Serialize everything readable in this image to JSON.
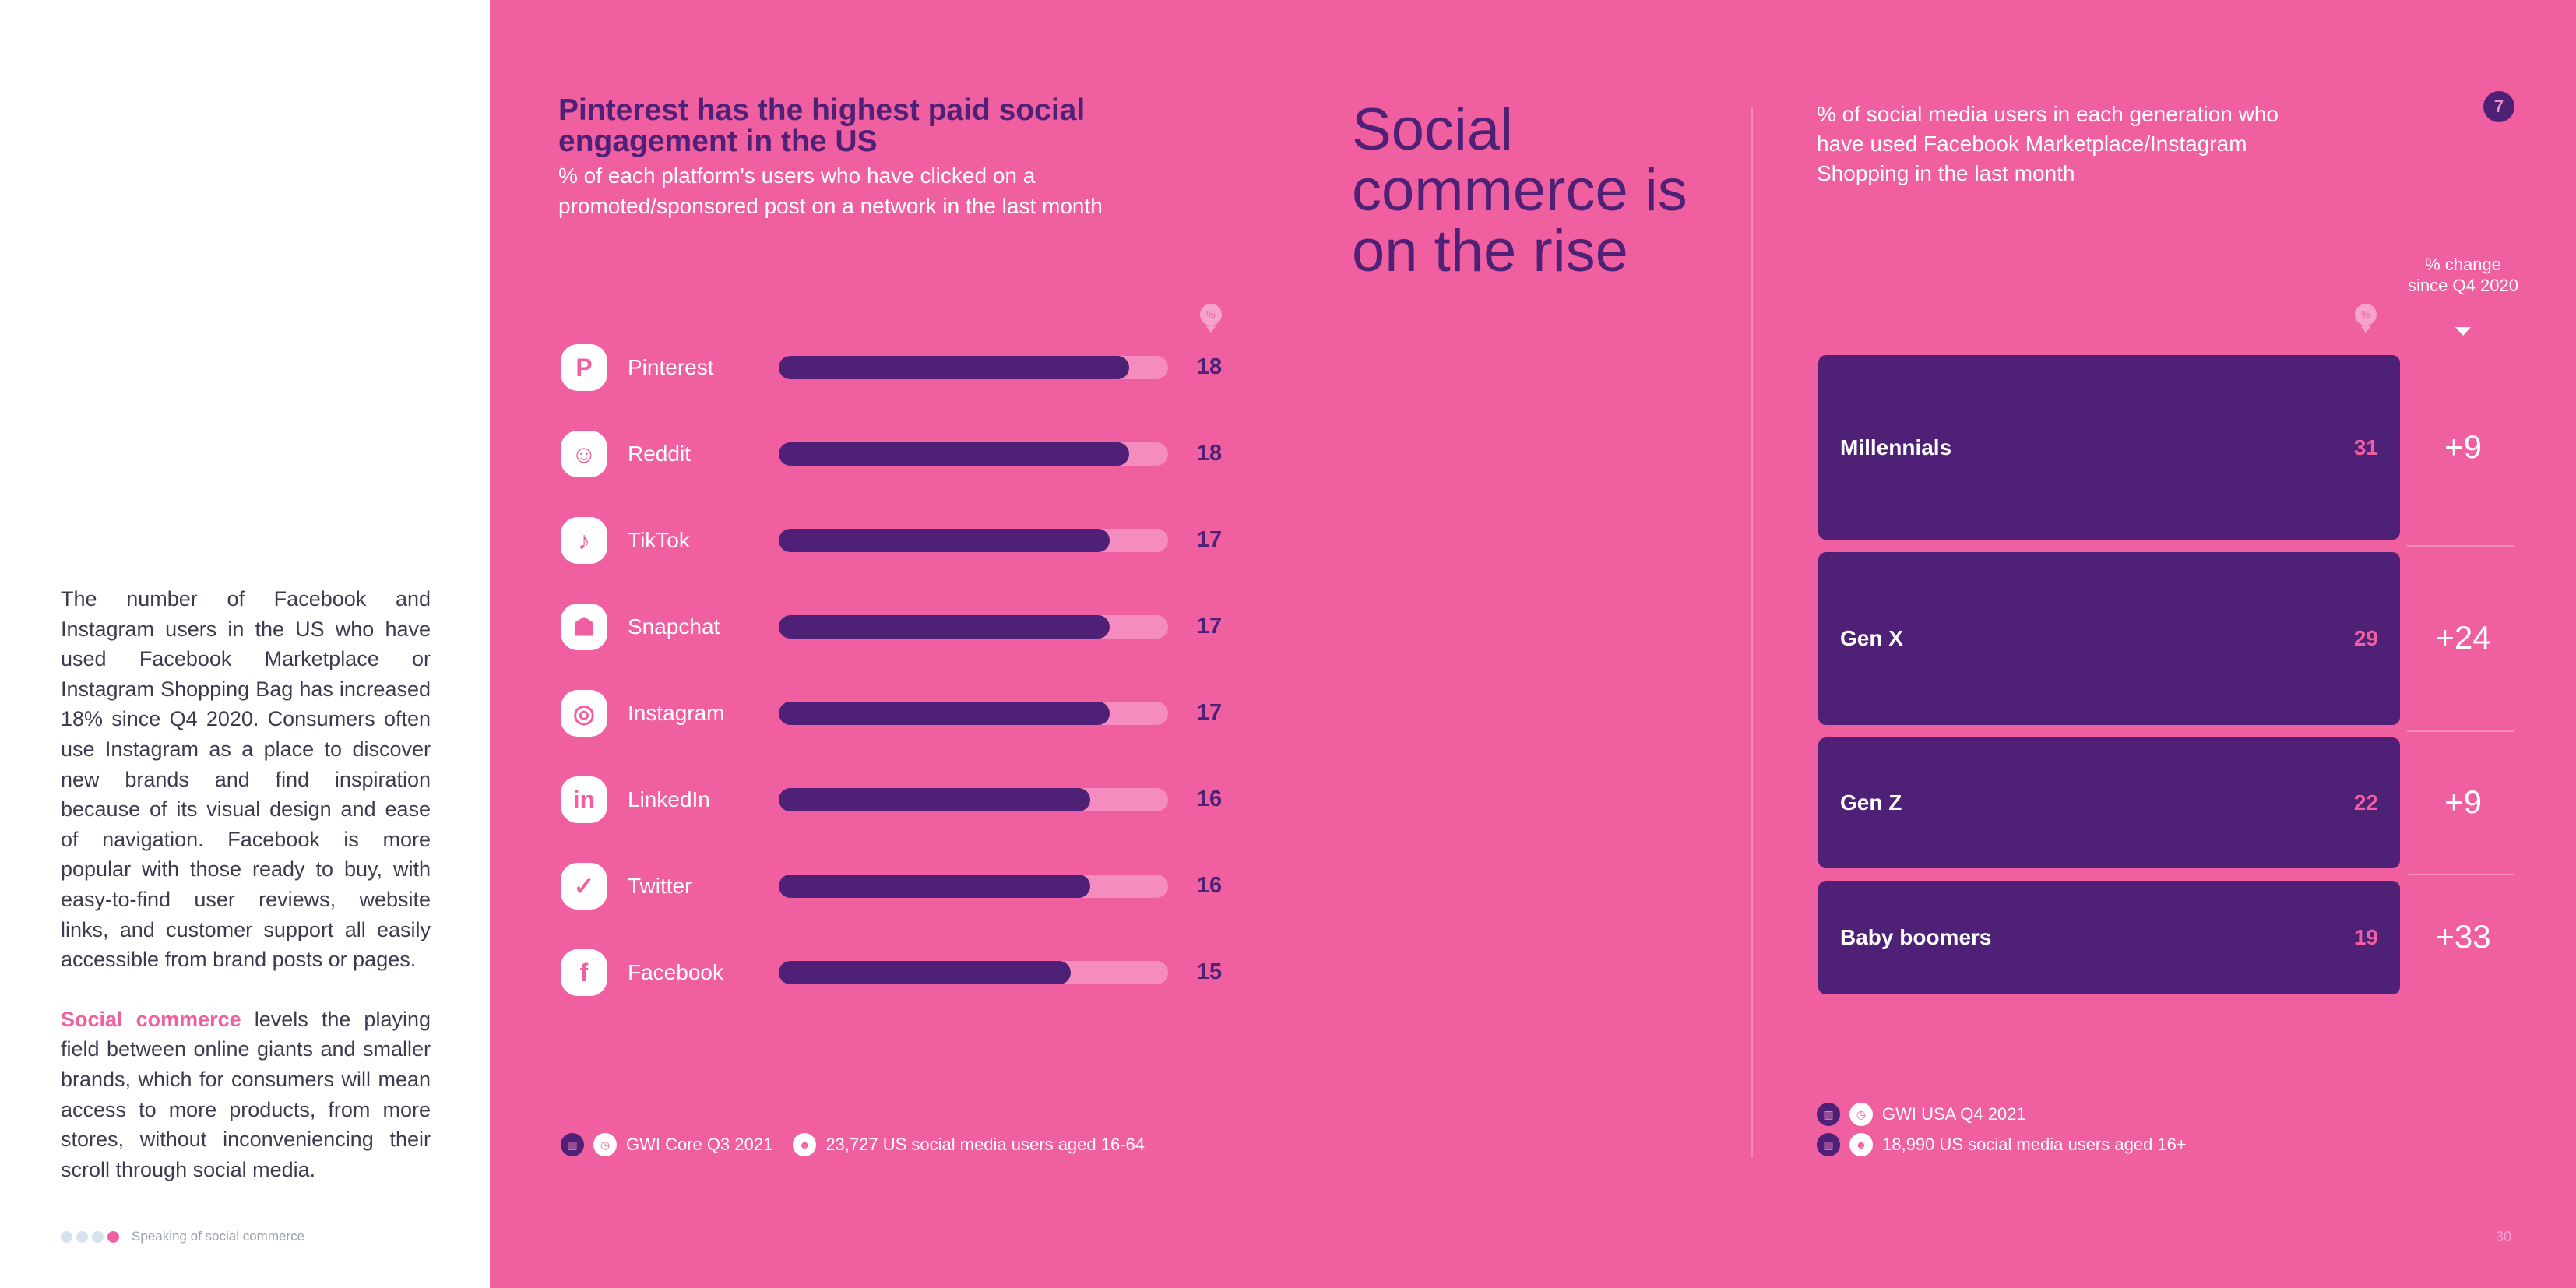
{
  "sidebar": {
    "paragraph1": "The number of Facebook and Instagram users in the US who have used Facebook Marketplace or Instagram Shopping Bag has increased 18% since Q4 2020. Consumers often use Instagram as a place to discover new brands and find inspiration because of its visual design and ease of navigation. Facebook is more popular with those ready to buy, with easy-to-find user reviews, website links, and customer support all easily accessible from brand posts or pages.",
    "highlight": "Social commerce",
    "paragraph2_rest": " levels the playing field between online giants and smaller brands, which for consumers will mean access to more products, from more stores, without inconveniencing their scroll through social media.",
    "footer": "Speaking of social commerce",
    "progress_dots": 4,
    "active_dot": 4
  },
  "colors": {
    "background": "#f05fa0",
    "purple": "#4f2176",
    "track": "#f58cc0"
  },
  "chart_data": [
    {
      "type": "bar",
      "title": "Pinterest has the highest paid social engagement in the US",
      "subtitle": "% of each platform's users who have clicked on a promoted/sponsored post on a network in the last month",
      "unit_icon": "%",
      "categories": [
        "Pinterest",
        "Reddit",
        "TikTok",
        "Snapchat",
        "Instagram",
        "LinkedIn",
        "Twitter",
        "Facebook"
      ],
      "icons": [
        "pinterest-icon",
        "reddit-icon",
        "tiktok-icon",
        "snapchat-icon",
        "instagram-icon",
        "linkedin-icon",
        "twitter-icon",
        "facebook-icon"
      ],
      "glyphs": [
        "P",
        "☺",
        "♪",
        "☗",
        "◎",
        "in",
        "✓",
        "f"
      ],
      "values": [
        18,
        18,
        17,
        17,
        17,
        16,
        16,
        15
      ],
      "xlim": [
        0,
        20
      ],
      "source": "GWI Core Q3 2021",
      "base": "23,727 US social media users aged 16-64"
    },
    {
      "type": "bar",
      "subtitle": "% of social media users in each generation who have used Facebook Marketplace/Instagram Shopping in the last month",
      "unit_icon": "%",
      "change_header": "% change since Q4 2020",
      "categories": [
        "Millennials",
        "Gen X",
        "Gen Z",
        "Baby boomers"
      ],
      "values": [
        31,
        29,
        22,
        19
      ],
      "changes": [
        "+9",
        "+24",
        "+9",
        "+33"
      ],
      "source": "GWI USA Q4 2021",
      "base": "18,990 US social media users aged 16+"
    }
  ],
  "section": {
    "title": "Social commerce is on the rise",
    "badge": "7"
  },
  "page_number": "30"
}
